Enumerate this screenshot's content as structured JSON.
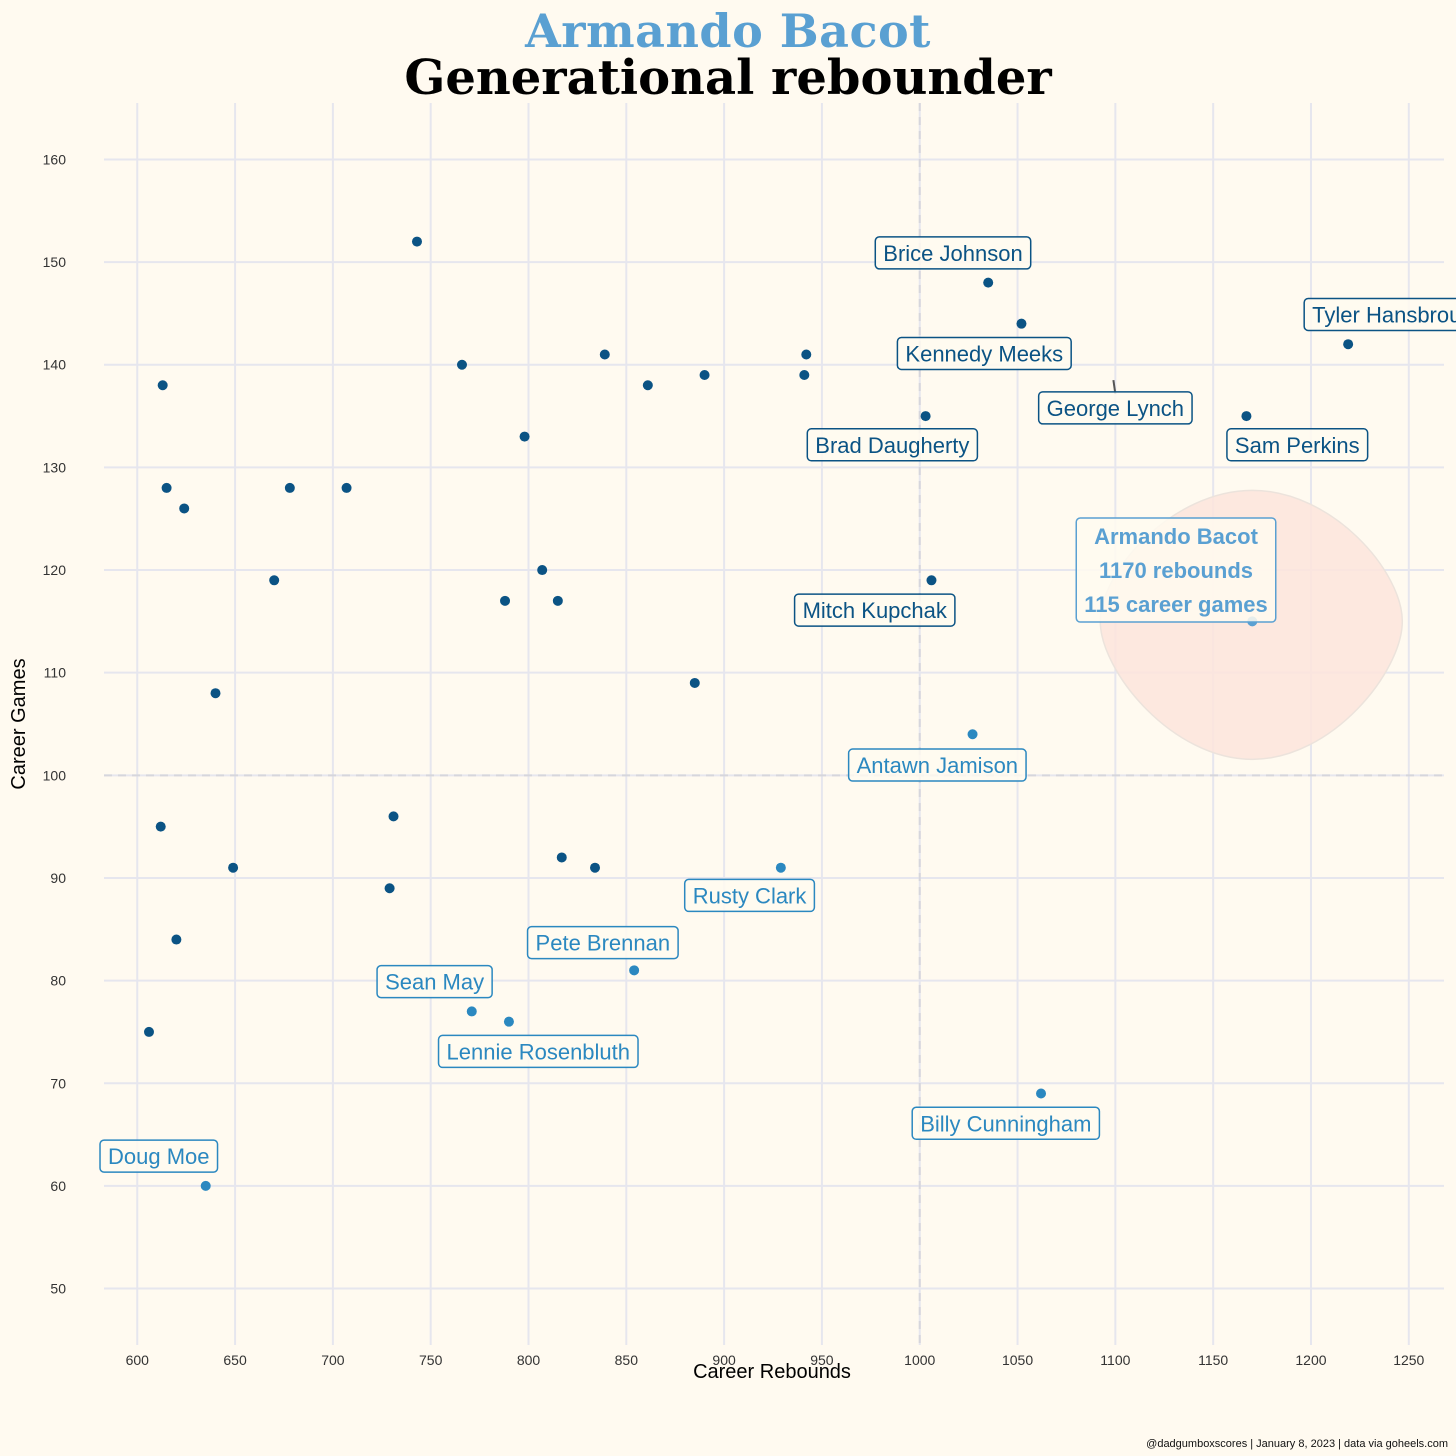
{
  "header": {
    "title": "Armando Bacot",
    "subtitle": "Generational rebounder"
  },
  "caption": "@dadgumboxscores | January 8, 2023 | data via goheels.com",
  "colors": {
    "background": "#fffaf0",
    "grid": "#e6e6ee",
    "point_dark": "#0b5384",
    "point_light": "#2b88c0",
    "highlight": "#5aa0d2",
    "highlight_blob": "#fde4dc",
    "reference_line": "#d6d6dc"
  },
  "chart_data": {
    "type": "scatter",
    "xlabel": "Career Rebounds",
    "ylabel": "Career Games",
    "xlim": [
      583,
      1268
    ],
    "ylim": [
      44.5,
      165.5
    ],
    "x_ticks": [
      600,
      650,
      700,
      750,
      800,
      850,
      900,
      950,
      1000,
      1050,
      1100,
      1150,
      1200,
      1250
    ],
    "y_ticks": [
      50,
      60,
      70,
      80,
      90,
      100,
      110,
      120,
      130,
      140,
      150,
      160
    ],
    "grid": true,
    "reference_lines": {
      "x": 1000,
      "y": 100
    },
    "points": [
      {
        "x": 743,
        "y": 152,
        "group": "dark"
      },
      {
        "x": 766,
        "y": 140,
        "group": "dark"
      },
      {
        "x": 613,
        "y": 138,
        "group": "dark"
      },
      {
        "x": 839,
        "y": 141,
        "group": "dark"
      },
      {
        "x": 861,
        "y": 138,
        "group": "dark"
      },
      {
        "x": 890,
        "y": 139,
        "group": "dark"
      },
      {
        "x": 942,
        "y": 141,
        "group": "dark"
      },
      {
        "x": 941,
        "y": 139,
        "group": "dark"
      },
      {
        "x": 798,
        "y": 133,
        "group": "dark"
      },
      {
        "x": 615,
        "y": 128,
        "group": "dark"
      },
      {
        "x": 624,
        "y": 126,
        "group": "dark"
      },
      {
        "x": 678,
        "y": 128,
        "group": "dark"
      },
      {
        "x": 707,
        "y": 128,
        "group": "dark"
      },
      {
        "x": 670,
        "y": 119,
        "group": "dark"
      },
      {
        "x": 807,
        "y": 120,
        "group": "dark"
      },
      {
        "x": 788,
        "y": 117,
        "group": "dark"
      },
      {
        "x": 815,
        "y": 117,
        "group": "dark"
      },
      {
        "x": 640,
        "y": 108,
        "group": "dark"
      },
      {
        "x": 885,
        "y": 109,
        "group": "dark"
      },
      {
        "x": 612,
        "y": 95,
        "group": "dark"
      },
      {
        "x": 649,
        "y": 91,
        "group": "dark"
      },
      {
        "x": 731,
        "y": 96,
        "group": "dark"
      },
      {
        "x": 729,
        "y": 89,
        "group": "dark"
      },
      {
        "x": 817,
        "y": 92,
        "group": "dark"
      },
      {
        "x": 834,
        "y": 91,
        "group": "dark"
      },
      {
        "x": 620,
        "y": 84,
        "group": "dark"
      },
      {
        "x": 606,
        "y": 75,
        "group": "dark"
      },
      {
        "x": 1035,
        "y": 148,
        "group": "dark",
        "name": "Brice Johnson"
      },
      {
        "x": 1052,
        "y": 144,
        "group": "dark",
        "name": "Kennedy Meeks"
      },
      {
        "x": 1219,
        "y": 142,
        "group": "dark",
        "name": "Tyler Hansbrough"
      },
      {
        "x": 1003,
        "y": 135,
        "group": "dark",
        "name": "Brad Daugherty"
      },
      {
        "x": 1167,
        "y": 135,
        "group": "dark",
        "name": "Sam Perkins"
      },
      {
        "x": 1006,
        "y": 119,
        "group": "dark",
        "name": "Mitch Kupchak"
      },
      {
        "x": 1027,
        "y": 104,
        "group": "light",
        "name": "Antawn Jamison"
      },
      {
        "x": 929,
        "y": 91,
        "group": "light",
        "name": "Rusty Clark"
      },
      {
        "x": 854,
        "y": 81,
        "group": "light",
        "name": "Pete Brennan"
      },
      {
        "x": 771,
        "y": 77,
        "group": "light",
        "name": "Sean May"
      },
      {
        "x": 790,
        "y": 76,
        "group": "light",
        "name": "Lennie Rosenbluth"
      },
      {
        "x": 1062,
        "y": 69,
        "group": "light",
        "name": "Billy Cunningham"
      },
      {
        "x": 635,
        "y": 60,
        "group": "light",
        "name": "Doug Moe"
      },
      {
        "x": 1170,
        "y": 115,
        "group": "highlight",
        "name": "Armando Bacot"
      }
    ],
    "labels": [
      {
        "text": "Brice Johnson",
        "x": 1017,
        "y": 150.9,
        "group": "dark"
      },
      {
        "text": "Kennedy Meeks",
        "x": 1033,
        "y": 141.1,
        "group": "dark"
      },
      {
        "text": "George Lynch",
        "x": 1100,
        "y": 135.8,
        "group": "dark",
        "leader_to": [
          1099,
          138.5
        ]
      },
      {
        "text": "Tyler Hansbrough",
        "x": 1245,
        "y": 144.9,
        "group": "dark"
      },
      {
        "text": "Brad Daugherty",
        "x": 986,
        "y": 132.2,
        "group": "dark"
      },
      {
        "text": "Sam Perkins",
        "x": 1193,
        "y": 132.2,
        "group": "dark"
      },
      {
        "text": "Mitch Kupchak",
        "x": 977,
        "y": 116.1,
        "group": "dark"
      },
      {
        "text": "Antawn Jamison",
        "x": 1009,
        "y": 101.0,
        "group": "light"
      },
      {
        "text": "Rusty Clark",
        "x": 913,
        "y": 88.3,
        "group": "light"
      },
      {
        "text": "Pete Brennan",
        "x": 838,
        "y": 83.7,
        "group": "light"
      },
      {
        "text": "Sean May",
        "x": 752,
        "y": 79.9,
        "group": "light"
      },
      {
        "text": "Lennie Rosenbluth",
        "x": 805,
        "y": 73.1,
        "group": "light"
      },
      {
        "text": "Billy Cunningham",
        "x": 1044,
        "y": 66.1,
        "group": "light"
      },
      {
        "text": "Doug Moe",
        "x": 611,
        "y": 62.9,
        "group": "light"
      }
    ],
    "highlight_label": {
      "lines": [
        "Armando Bacot",
        "1170 rebounds",
        "115 career games"
      ],
      "x": 1131,
      "y": 120
    }
  }
}
